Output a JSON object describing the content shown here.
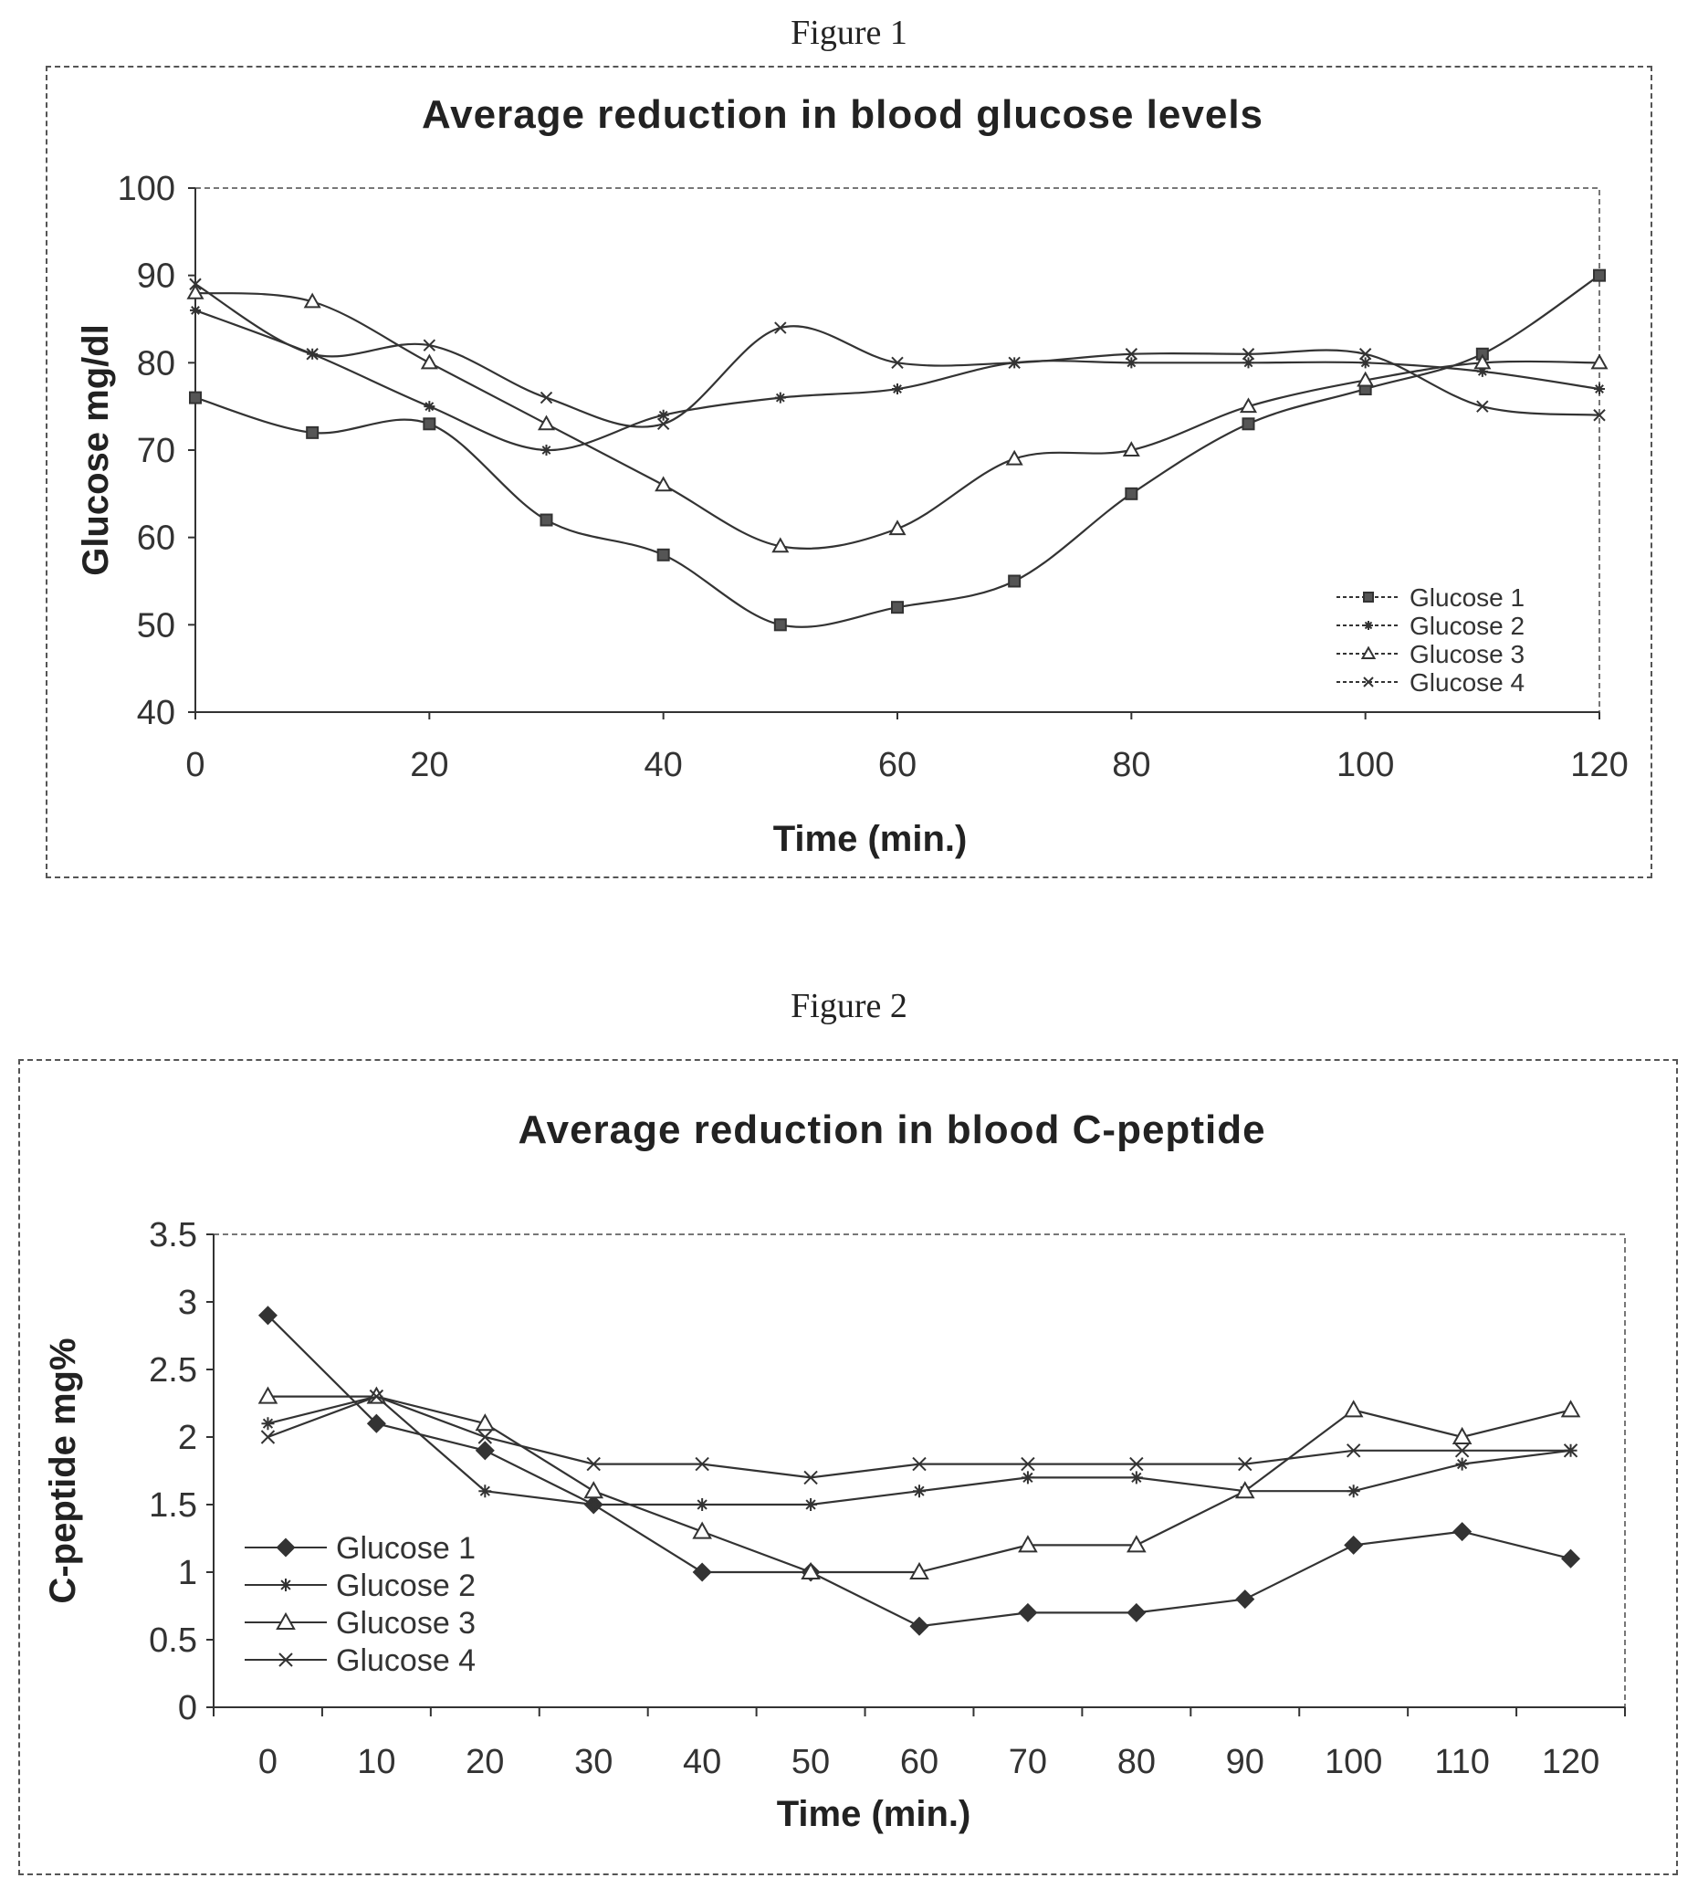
{
  "figures": [
    {
      "caption": "Figure 1"
    },
    {
      "caption": "Figure 2"
    }
  ],
  "chart_data": [
    {
      "type": "line",
      "title": "Average reduction in blood glucose levels",
      "xlabel": "Time (min.)",
      "ylabel": "Glucose mg/dl",
      "x_ticks": [
        0,
        20,
        40,
        60,
        80,
        100,
        120
      ],
      "y_ticks": [
        40,
        50,
        60,
        70,
        80,
        90,
        100
      ],
      "xlim": [
        0,
        120
      ],
      "ylim": [
        40,
        100
      ],
      "legend_position": "bottom-right",
      "smooth": true,
      "x": [
        0,
        10,
        20,
        30,
        40,
        50,
        60,
        70,
        80,
        90,
        100,
        110,
        120
      ],
      "series": [
        {
          "name": "Glucose 1",
          "marker": "square",
          "values": [
            76,
            72,
            73,
            62,
            58,
            50,
            52,
            55,
            65,
            73,
            77,
            81,
            90
          ]
        },
        {
          "name": "Glucose 2",
          "marker": "star",
          "values": [
            86,
            81,
            75,
            70,
            74,
            76,
            77,
            80,
            80,
            80,
            80,
            79,
            77
          ]
        },
        {
          "name": "Glucose 3",
          "marker": "triangle",
          "values": [
            88,
            87,
            80,
            73,
            66,
            59,
            61,
            69,
            70,
            75,
            78,
            80,
            80
          ]
        },
        {
          "name": "Glucose 4",
          "marker": "x",
          "values": [
            89,
            81,
            82,
            76,
            73,
            84,
            80,
            80,
            81,
            81,
            81,
            75,
            74
          ]
        }
      ]
    },
    {
      "type": "line",
      "title": "Average reduction in blood C-peptide",
      "xlabel": "Time (min.)",
      "ylabel": "C-peptide mg%",
      "x_ticks": [
        0,
        10,
        20,
        30,
        40,
        50,
        60,
        70,
        80,
        90,
        100,
        110,
        120
      ],
      "y_ticks": [
        "0",
        "0.5",
        "1",
        "1.5",
        "2",
        "2.5",
        "3",
        "3.5"
      ],
      "categories": [
        "0",
        "10",
        "20",
        "30",
        "40",
        "50",
        "60",
        "70",
        "80",
        "90",
        "100",
        "110",
        "120"
      ],
      "ylim": [
        0,
        3.5
      ],
      "legend_position": "left",
      "smooth": false,
      "series": [
        {
          "name": "Glucose 1",
          "marker": "diamond",
          "values": [
            2.9,
            2.1,
            1.9,
            1.5,
            1.0,
            1.0,
            0.6,
            0.7,
            0.7,
            0.8,
            1.2,
            1.3,
            1.1
          ]
        },
        {
          "name": "Glucose 2",
          "marker": "star",
          "values": [
            2.1,
            2.3,
            1.6,
            1.5,
            1.5,
            1.5,
            1.6,
            1.7,
            1.7,
            1.6,
            1.6,
            1.8,
            1.9
          ]
        },
        {
          "name": "Glucose 3",
          "marker": "triangle",
          "values": [
            2.3,
            2.3,
            2.1,
            1.6,
            1.3,
            1.0,
            1.0,
            1.2,
            1.2,
            1.6,
            2.2,
            2.0,
            2.2
          ]
        },
        {
          "name": "Glucose 4",
          "marker": "x",
          "values": [
            2.0,
            2.3,
            2.0,
            1.8,
            1.8,
            1.7,
            1.8,
            1.8,
            1.8,
            1.8,
            1.9,
            1.9,
            1.9
          ]
        }
      ]
    }
  ]
}
